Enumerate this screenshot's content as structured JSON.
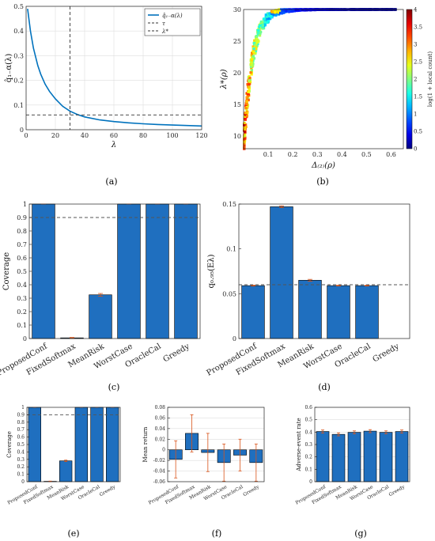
{
  "colors": {
    "bar": "#1f6fbf",
    "line": "#0072bd",
    "error": "#d95319",
    "ref": "#555555",
    "grid": "#dedede"
  },
  "chart_data": [
    {
      "id": "a",
      "caption": "(a)",
      "type": "line",
      "xlabel": "λ",
      "ylabel": "q̂₁₋α(λ)",
      "xlim": [
        0,
        120
      ],
      "ylim": [
        0,
        0.5
      ],
      "xticks": [
        "0",
        "20",
        "40",
        "60",
        "80",
        "100",
        "120"
      ],
      "yticks": [
        "0",
        "0.1",
        "0.2",
        "0.3",
        "0.4",
        "0.5"
      ],
      "grid": true,
      "legend_position": "top-right",
      "legend": [
        "q̂₁₋α(λ)",
        "τ",
        "λ*"
      ],
      "series": [
        {
          "name": "q̂₁₋α(λ)",
          "x": [
            1,
            3,
            5,
            8,
            10,
            13,
            16,
            20,
            25,
            30,
            35,
            40,
            50,
            60,
            70,
            80,
            90,
            100,
            110,
            120
          ],
          "y": [
            0.49,
            0.4,
            0.33,
            0.26,
            0.225,
            0.185,
            0.155,
            0.125,
            0.095,
            0.075,
            0.062,
            0.052,
            0.04,
            0.033,
            0.028,
            0.024,
            0.021,
            0.019,
            0.017,
            0.015
          ]
        }
      ],
      "tau": 0.06,
      "lambda_star": 30
    },
    {
      "id": "b",
      "caption": "(b)",
      "type": "heatmap",
      "xlabel": "Δ₍₂₎(ρ)",
      "ylabel": "λ*(ρ)",
      "xlim": [
        0,
        0.65
      ],
      "ylim": [
        8,
        30
      ],
      "xticks": [
        "0.1",
        "0.2",
        "0.3",
        "0.4",
        "0.5",
        "0.6"
      ],
      "yticks": [
        "10",
        "15",
        "20",
        "25",
        "30"
      ],
      "colorbar_label": "log(1 + local count)",
      "colorbar_ticks": [
        "0",
        "0.5",
        "1",
        "1.5",
        "2",
        "2.5",
        "3",
        "3.5",
        "4"
      ],
      "colorbar_range": [
        0,
        4
      ]
    },
    {
      "id": "c",
      "caption": "(c)",
      "type": "bar",
      "ylabel": "Coverage",
      "categories": [
        "ProposedConf",
        "FixedSoftmax",
        "MeanRisk",
        "WorstCase",
        "OracleCal",
        "Greedy"
      ],
      "values": [
        1.0,
        0.005,
        0.325,
        1.0,
        1.0,
        1.0
      ],
      "errors": [
        0,
        0.003,
        0.01,
        0,
        0,
        0
      ],
      "ylim": [
        0,
        1
      ],
      "yticks": [
        "0",
        "0.1",
        "0.2",
        "0.3",
        "0.4",
        "0.5",
        "0.6",
        "0.7",
        "0.8",
        "0.9",
        "1"
      ],
      "reference": 0.9
    },
    {
      "id": "d",
      "caption": "(d)",
      "type": "bar",
      "ylabel": "q₀.₉₅(Eλ)",
      "categories": [
        "ProposedConf",
        "FixedSoftmax",
        "MeanRisk",
        "WorstCase",
        "OracleCal",
        "Greedy"
      ],
      "values": [
        0.059,
        0.147,
        0.065,
        0.059,
        0.059,
        0
      ],
      "errors": [
        0.0005,
        0.001,
        0.001,
        0.0004,
        0.0004,
        0
      ],
      "ylim": [
        0,
        0.15
      ],
      "yticks": [
        "0",
        "0.05",
        "0.1",
        "0.15"
      ],
      "reference": 0.06
    },
    {
      "id": "e",
      "caption": "(e)",
      "type": "bar",
      "ylabel": "Coverage",
      "categories": [
        "ProposedConf",
        "FixedSoftmax",
        "MeanRisk",
        "WorstCase",
        "OracleCal",
        "Greedy"
      ],
      "values": [
        1.0,
        0.005,
        0.28,
        1.0,
        1.0,
        1.0
      ],
      "errors": [
        0,
        0.003,
        0.01,
        0,
        0,
        0
      ],
      "ylim": [
        0,
        1
      ],
      "yticks": [
        "0",
        "0.1",
        "0.2",
        "0.3",
        "0.4",
        "0.5",
        "0.6",
        "0.7",
        "0.8",
        "0.9",
        "1"
      ],
      "reference": 0.9
    },
    {
      "id": "f",
      "caption": "(f)",
      "type": "bar",
      "ylabel": "Mean return",
      "categories": [
        "ProposedConf",
        "FixedSoftmax",
        "MeanRisk",
        "WorstCase",
        "OracleCal",
        "Greedy"
      ],
      "values": [
        -0.018,
        0.031,
        -0.005,
        -0.024,
        -0.01,
        -0.024
      ],
      "errors": [
        0.035,
        0.035,
        0.036,
        0.035,
        0.03,
        0.035
      ],
      "ylim": [
        -0.06,
        0.08
      ],
      "yticks": [
        "-0.06",
        "-0.04",
        "-0.02",
        "0",
        "0.02",
        "0.04",
        "0.06",
        "0.08"
      ],
      "grid": true
    },
    {
      "id": "g",
      "caption": "(g)",
      "type": "bar",
      "ylabel": "Adverse-event rate",
      "categories": [
        "ProposedConf",
        "FixedSoftmax",
        "MeanRisk",
        "WorstCase",
        "OracleCal",
        "Greedy"
      ],
      "values": [
        0.405,
        0.382,
        0.398,
        0.408,
        0.398,
        0.405
      ],
      "errors": [
        0.012,
        0.012,
        0.012,
        0.012,
        0.012,
        0.012
      ],
      "ylim": [
        0,
        0.6
      ],
      "yticks": [
        "0",
        "0.1",
        "0.2",
        "0.3",
        "0.4",
        "0.5",
        "0.6"
      ],
      "grid": true
    }
  ]
}
